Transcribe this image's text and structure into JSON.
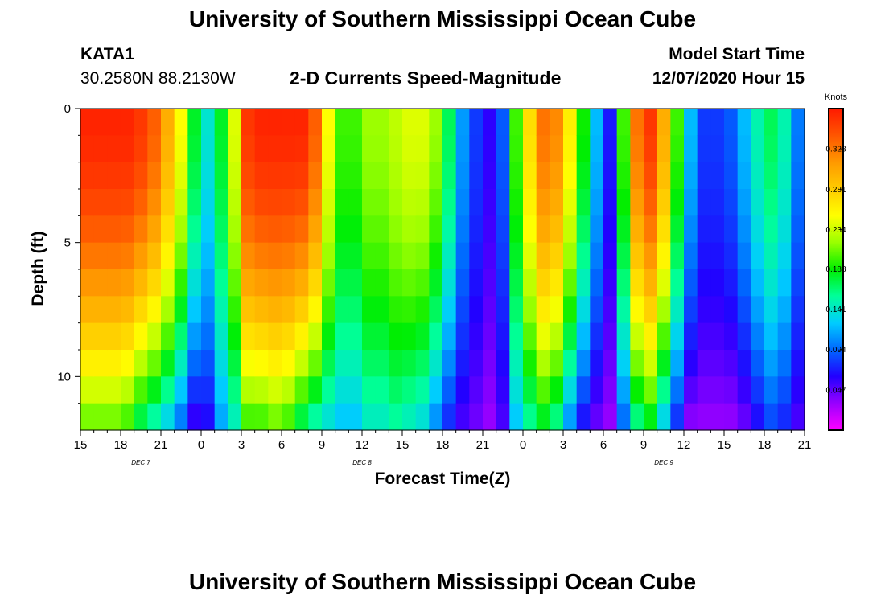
{
  "page": {
    "title_top": "University of Southern Mississippi Ocean Cube",
    "title_bottom": "University of Southern Mississippi Ocean Cube",
    "station": "KATA1",
    "coords": "30.2580N 88.2130W",
    "plot_title": "2-D Currents Speed-Magnitude",
    "model_start_label": "Model Start Time",
    "model_start_value": "12/07/2020 Hour 15"
  },
  "chart_data": {
    "type": "heatmap",
    "title": "2-D Currents Speed-Magnitude",
    "xlabel": "Forecast Time(Z)",
    "ylabel": "Depth (ft)",
    "x_tick_labels": [
      "15",
      "18",
      "21",
      "0",
      "3",
      "6",
      "9",
      "12",
      "15",
      "18",
      "21",
      "0",
      "3",
      "6",
      "9",
      "12",
      "15",
      "18",
      "21"
    ],
    "x_range_hours": [
      0,
      54
    ],
    "day_labels": [
      {
        "text": "DEC  7",
        "hour": 4.5
      },
      {
        "text": "DEC  8",
        "hour": 21
      },
      {
        "text": "DEC  9",
        "hour": 43.5
      }
    ],
    "y_tick_labels": [
      "0",
      "5",
      "10"
    ],
    "y_range_ft": [
      0,
      12
    ],
    "colorbar": {
      "units": "Knots",
      "min": 0.0,
      "max": 0.375,
      "tick_labels": [
        "0.328",
        "0.281",
        "0.234",
        "0.188",
        "0.141",
        "0.094",
        "0.047"
      ],
      "colors": [
        "#ff00ff",
        "#9900ff",
        "#2200ff",
        "#0066ff",
        "#00ccff",
        "#00ff99",
        "#00ee00",
        "#99ff00",
        "#ffff00",
        "#ffcc00",
        "#ff9900",
        "#ff5500",
        "#ff1a00"
      ]
    },
    "time_step_hours": 1,
    "depth_levels_ft": [
      0.5,
      1.5,
      2.5,
      3.5,
      4.5,
      5.5,
      6.5,
      7.5,
      8.5,
      9.5,
      10.5,
      11.5
    ],
    "surface_speed_knots": [
      0.37,
      0.37,
      0.37,
      0.37,
      0.36,
      0.34,
      0.3,
      0.25,
      0.18,
      0.14,
      0.18,
      0.24,
      0.36,
      0.37,
      0.37,
      0.37,
      0.37,
      0.34,
      0.25,
      0.2,
      0.2,
      0.22,
      0.22,
      0.23,
      0.24,
      0.24,
      0.22,
      0.17,
      0.11,
      0.08,
      0.06,
      0.09,
      0.2,
      0.27,
      0.33,
      0.32,
      0.26,
      0.19,
      0.12,
      0.07,
      0.2,
      0.33,
      0.36,
      0.3,
      0.2,
      0.12,
      0.08,
      0.08,
      0.09,
      0.12,
      0.15,
      0.17,
      0.15,
      0.1
    ],
    "bottom_speed_knots": [
      0.2,
      0.2,
      0.2,
      0.19,
      0.16,
      0.14,
      0.12,
      0.09,
      0.05,
      0.06,
      0.11,
      0.14,
      0.19,
      0.19,
      0.2,
      0.19,
      0.16,
      0.14,
      0.13,
      0.12,
      0.12,
      0.14,
      0.14,
      0.15,
      0.14,
      0.13,
      0.1,
      0.07,
      0.05,
      0.04,
      0.03,
      0.05,
      0.12,
      0.15,
      0.17,
      0.15,
      0.1,
      0.06,
      0.04,
      0.03,
      0.09,
      0.15,
      0.17,
      0.12,
      0.07,
      0.03,
      0.03,
      0.03,
      0.03,
      0.04,
      0.06,
      0.08,
      0.07,
      0.05
    ]
  }
}
